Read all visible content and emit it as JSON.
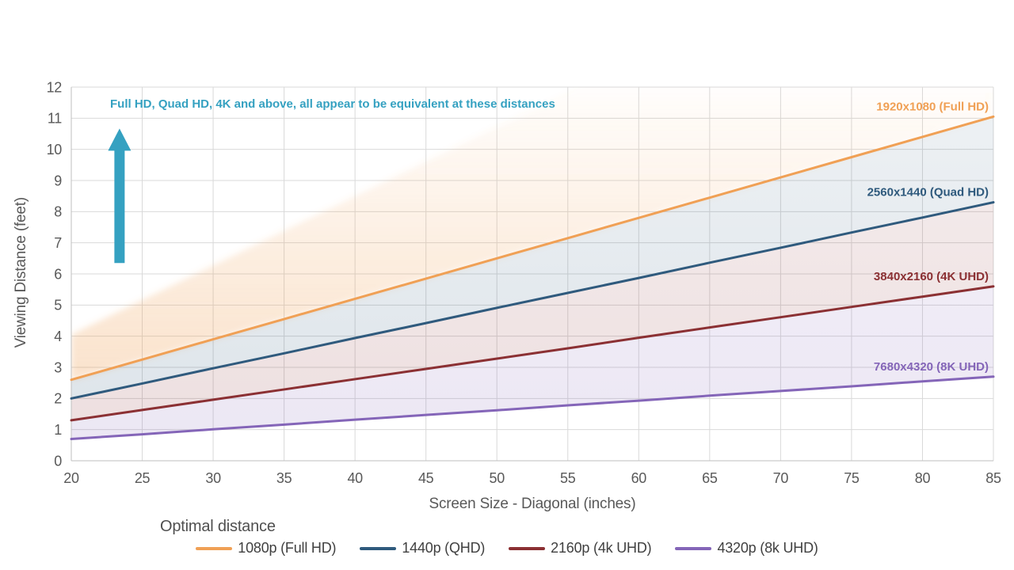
{
  "chart_data": {
    "type": "line",
    "xlabel": "Screen Size - Diagonal (inches)",
    "ylabel": "Viewing Distance (feet)",
    "xlim": [
      20,
      85
    ],
    "ylim": [
      0,
      12
    ],
    "x_ticks": [
      20,
      25,
      30,
      35,
      40,
      45,
      50,
      55,
      60,
      65,
      70,
      75,
      80,
      85
    ],
    "y_ticks": [
      0,
      1,
      2,
      3,
      4,
      5,
      6,
      7,
      8,
      9,
      10,
      11,
      12
    ],
    "grid": true,
    "x": [
      20,
      25,
      30,
      35,
      40,
      45,
      50,
      55,
      60,
      65,
      70,
      75,
      80,
      85
    ],
    "series": [
      {
        "name": "1080p (Full HD)",
        "end_label": "1920x1080 (Full HD)",
        "color": "#F0A055",
        "values": [
          2.6,
          3.25,
          3.9,
          4.55,
          5.2,
          5.85,
          6.5,
          7.15,
          7.8,
          8.45,
          9.1,
          9.75,
          10.4,
          11.05
        ]
      },
      {
        "name": "1440p (QHD)",
        "end_label": "2560x1440 (Quad HD)",
        "color": "#2F5A7D",
        "values": [
          2.0,
          2.48,
          2.97,
          3.45,
          3.94,
          4.42,
          4.91,
          5.39,
          5.87,
          6.36,
          6.84,
          7.33,
          7.81,
          8.3
        ]
      },
      {
        "name": "2160p (4k UHD)",
        "end_label": "3840x2160 (4K UHD)",
        "color": "#8B3033",
        "values": [
          1.3,
          1.63,
          1.96,
          2.29,
          2.62,
          2.95,
          3.28,
          3.61,
          3.95,
          4.28,
          4.61,
          4.94,
          5.27,
          5.6
        ]
      },
      {
        "name": "4320p (8k UHD)",
        "end_label": "7680x4320 (8K UHD)",
        "color": "#8465B8",
        "values": [
          0.7,
          0.85,
          1.01,
          1.16,
          1.32,
          1.47,
          1.62,
          1.78,
          1.93,
          2.09,
          2.24,
          2.39,
          2.55,
          2.7
        ]
      }
    ],
    "upper_region": {
      "series": 0,
      "top_start_y": 4.05,
      "top_slope_per_inch": 0.218
    },
    "annotation": {
      "text": "Full HD, Quad HD, 4K and above, all appear to be equivalent at these distances",
      "color": "#35A1C1",
      "arrow": {
        "x": 23.4,
        "y_from": 6.35,
        "y_to": 10.67
      }
    },
    "legend": {
      "title": "Optimal distance",
      "position": "bottom"
    },
    "style_colors": {
      "gridline": "#D9D9D9",
      "axis_line": "#BFBFBF",
      "tick_text": "#595959"
    }
  }
}
